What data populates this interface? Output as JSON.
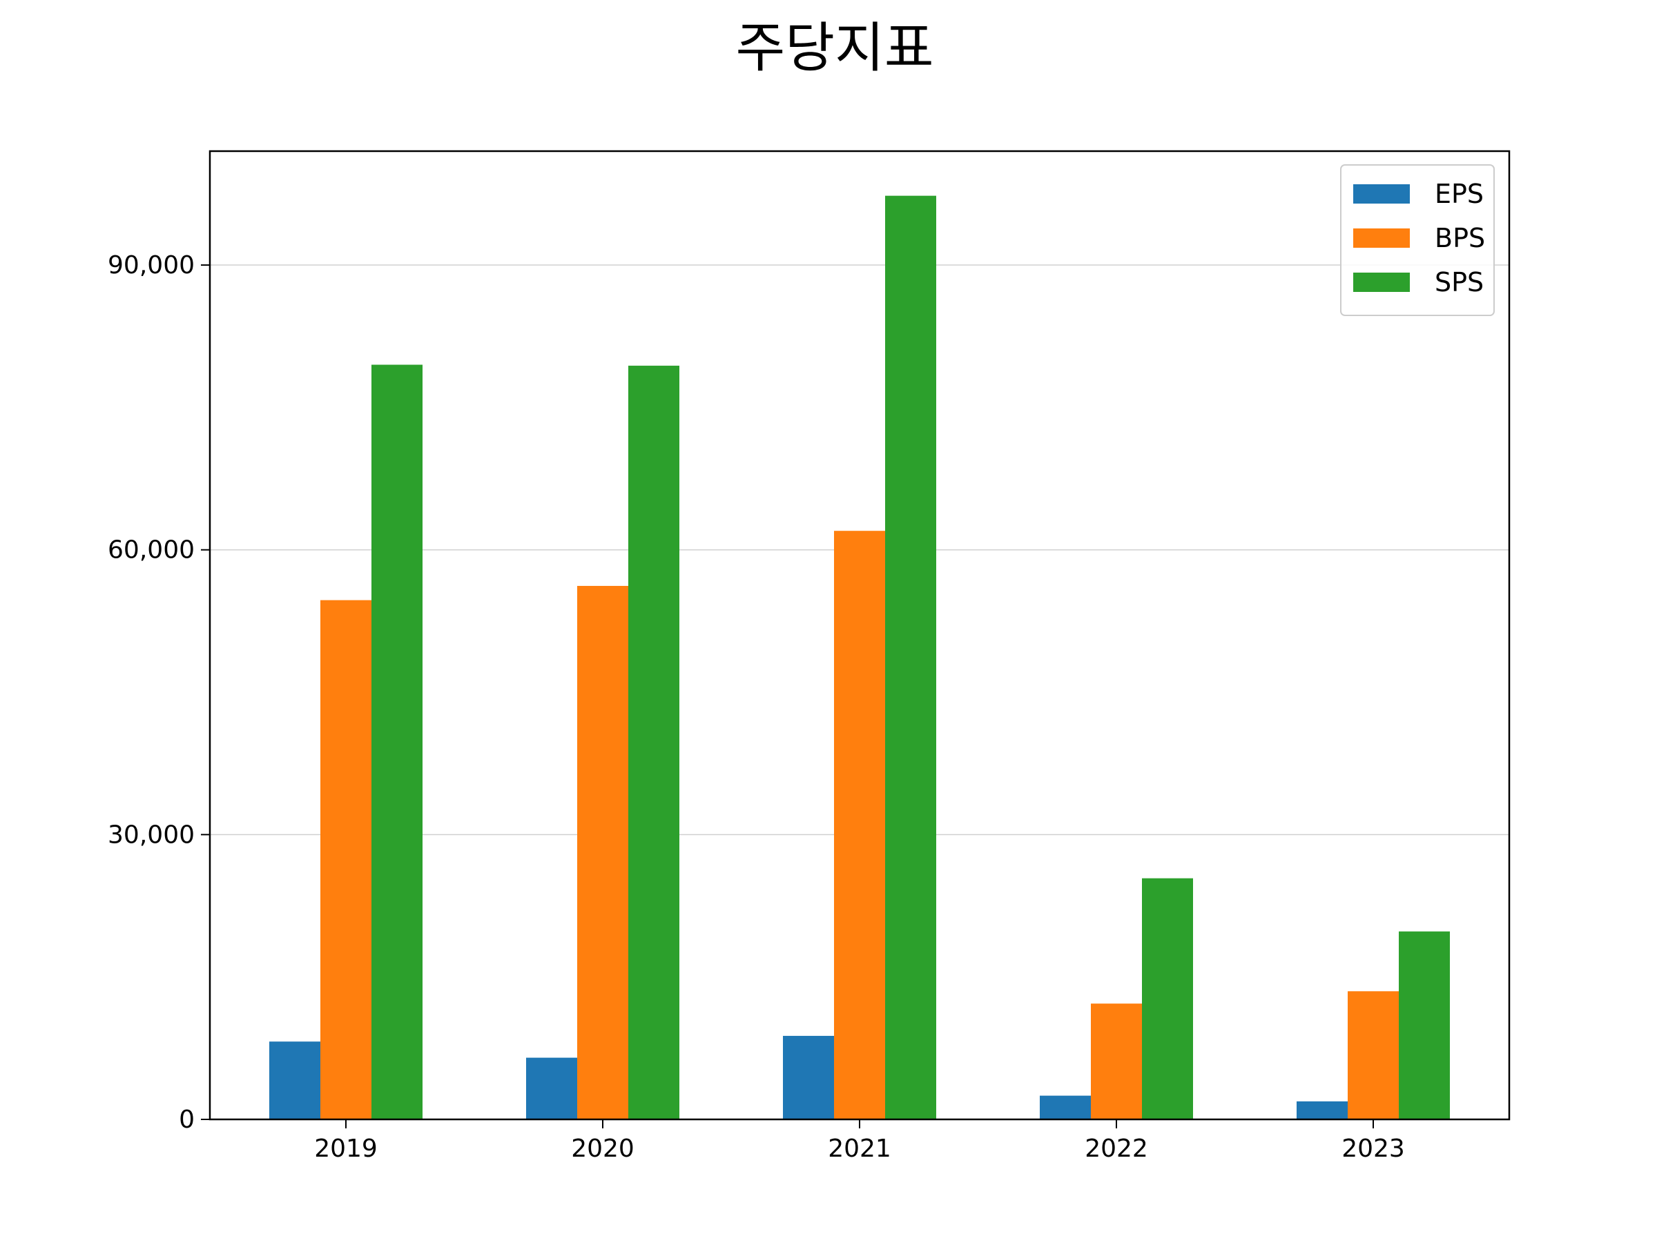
{
  "chart_data": {
    "type": "bar",
    "title": "주당지표",
    "xlabel": "",
    "ylabel": "",
    "categories": [
      "2019",
      "2020",
      "2021",
      "2022",
      "2023"
    ],
    "series": [
      {
        "name": "EPS",
        "color": "#1f77b4",
        "values": [
          8200,
          6500,
          8800,
          2500,
          1900
        ]
      },
      {
        "name": "BPS",
        "color": "#ff7f0e",
        "values": [
          54700,
          56200,
          62000,
          12200,
          13500
        ]
      },
      {
        "name": "SPS",
        "color": "#2ca02c",
        "values": [
          79500,
          79400,
          97300,
          25400,
          19800
        ]
      }
    ],
    "ylim": [
      0,
      102000
    ],
    "yticks": [
      0,
      30000,
      60000,
      90000
    ],
    "ytick_labels": [
      "0",
      "30,000",
      "60,000",
      "90,000"
    ],
    "grid": "horizontal",
    "legend_position": "top-right"
  }
}
